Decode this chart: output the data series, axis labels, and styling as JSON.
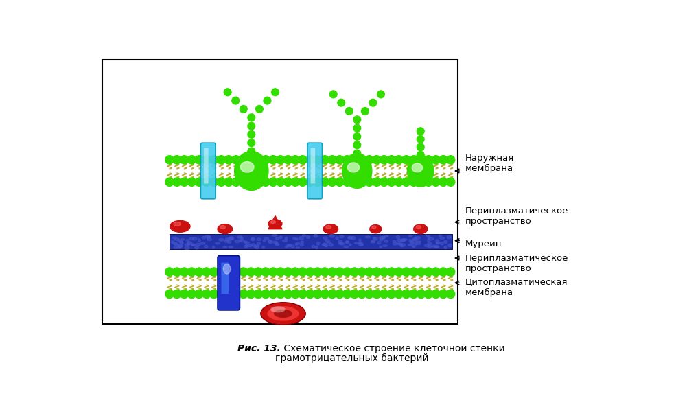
{
  "figure_width": 10.01,
  "figure_height": 6.12,
  "dpi": 100,
  "bg_color": "#ffffff",
  "caption_italic": "Рис. 13.",
  "caption_normal": " Схематическое строение клеточной стенки",
  "caption_line2": "грамотрицательных бактерий",
  "green_color": "#33dd00",
  "green_bright": "#55ff00",
  "cyan_color": "#44ccee",
  "blue_color": "#2233cc",
  "blue_bright": "#4488ff",
  "red_color": "#cc1111",
  "murein_color": "#2233aa",
  "murein_texture": "#4455cc",
  "tail_color": "#bbaa33",
  "head_color": "#33dd00"
}
